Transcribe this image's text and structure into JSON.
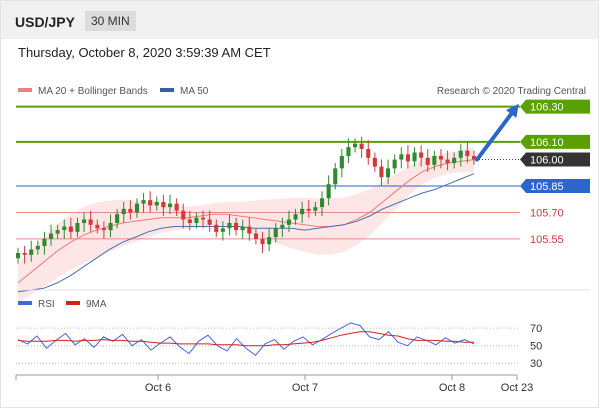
{
  "header": {
    "symbol": "USD/JPY",
    "timeframe": "30 MIN"
  },
  "datetime": "Thursday, October 8, 2020 3:59:39 AM CET",
  "colors": {
    "up": "#2f8a2f",
    "down": "#d23a3a",
    "ma20": "#f27a7a",
    "ma50": "#4a6fb5",
    "bands": "#fbdede",
    "resistance": "#5aa000",
    "support_line": "#e88a8a",
    "support_label": "#d23a3a",
    "pivot": "#2a66cc",
    "arrow": "#2a66cc",
    "rsi": "#4466dd",
    "rsi_ma": "#d22020",
    "current": "#333333"
  },
  "legend_main": [
    {
      "name": "MA 20 + Bollinger Bands",
      "color": "#f08080"
    },
    {
      "name": "MA 50",
      "color": "#3a5f9f"
    }
  ],
  "credit": "Research © 2020 Trading Central",
  "legend_rsi": [
    {
      "name": "RSI",
      "color": "#4466dd"
    },
    {
      "name": "9MA",
      "color": "#d22020"
    }
  ],
  "chart_data": [
    {
      "type": "line",
      "subtype": "candlestick",
      "ylim": [
        105.26,
        106.44
      ],
      "x_ticks": [
        "Oct 6",
        "Oct 7",
        "Oct 8",
        "Oct 23"
      ],
      "levels": [
        {
          "value": 106.3,
          "label": "106.30",
          "kind": "resistance"
        },
        {
          "value": 106.1,
          "label": "106.10",
          "kind": "resistance"
        },
        {
          "value": 106.0,
          "label": "106.00",
          "kind": "current"
        },
        {
          "value": 105.85,
          "label": "105.85",
          "kind": "pivot"
        },
        {
          "value": 105.7,
          "label": "105.70",
          "kind": "support"
        },
        {
          "value": 105.55,
          "label": "105.55",
          "kind": "support"
        }
      ],
      "close_series": [
        105.47,
        105.46,
        105.49,
        105.51,
        105.55,
        105.58,
        105.6,
        105.62,
        105.59,
        105.64,
        105.66,
        105.63,
        105.61,
        105.6,
        105.64,
        105.69,
        105.72,
        105.7,
        105.75,
        105.77,
        105.74,
        105.76,
        105.73,
        105.75,
        105.71,
        105.66,
        105.64,
        105.67,
        105.66,
        105.63,
        105.59,
        105.61,
        105.64,
        105.6,
        105.62,
        105.58,
        105.55,
        105.52,
        105.56,
        105.61,
        105.63,
        105.66,
        105.69,
        105.72,
        105.71,
        105.73,
        105.78,
        105.86,
        105.95,
        106.02,
        106.07,
        106.09,
        106.06,
        106.01,
        105.96,
        105.9,
        105.95,
        106.0,
        106.03,
        105.99,
        106.04,
        106.01,
        105.97,
        106.02,
        106.0,
        105.98,
        106.01,
        106.05,
        106.02,
        106.0
      ],
      "ma20_series": [
        105.3,
        105.36,
        105.42,
        105.48,
        105.53,
        105.57,
        105.6,
        105.62,
        105.64,
        105.65,
        105.66,
        105.67,
        105.67,
        105.67,
        105.68,
        105.69,
        105.69,
        105.68,
        105.67,
        105.66,
        105.65,
        105.64,
        105.63,
        105.62,
        105.62,
        105.63,
        105.66,
        105.7,
        105.76,
        105.82,
        105.88,
        105.93,
        105.96,
        105.98,
        105.99,
        106.0
      ],
      "ma50_series": [
        105.25,
        105.26,
        105.27,
        105.3,
        105.34,
        105.39,
        105.44,
        105.49,
        105.53,
        105.56,
        105.59,
        105.61,
        105.62,
        105.62,
        105.62,
        105.62,
        105.62,
        105.62,
        105.61,
        105.61,
        105.61,
        105.61,
        105.6,
        105.61,
        105.62,
        105.63,
        105.65,
        105.68,
        105.72,
        105.75,
        105.78,
        105.81,
        105.83,
        105.86,
        105.89,
        105.92
      ]
    },
    {
      "type": "line",
      "name": "RSI",
      "ylim": [
        20,
        85
      ],
      "y_ticks": [
        70,
        50,
        30
      ],
      "series": [
        {
          "name": "RSI",
          "values": [
            57,
            52,
            61,
            47,
            56,
            64,
            51,
            58,
            48,
            60,
            55,
            63,
            50,
            57,
            45,
            53,
            60,
            49,
            41,
            55,
            62,
            50,
            44,
            58,
            47,
            39,
            52,
            57,
            46,
            55,
            60,
            51,
            57,
            64,
            70,
            76,
            73,
            60,
            57,
            66,
            54,
            50,
            60,
            56,
            51,
            59,
            53,
            57,
            52
          ]
        },
        {
          "name": "9MA",
          "values": [
            56,
            55,
            55,
            55,
            56,
            56,
            55,
            56,
            56,
            57,
            56,
            56,
            55,
            55,
            54,
            53,
            53,
            52,
            52,
            52,
            52,
            51,
            51,
            51,
            50,
            50,
            50,
            51,
            51,
            52,
            53,
            54,
            56,
            59,
            62,
            64,
            66,
            66,
            64,
            62,
            61,
            58,
            56,
            56,
            56,
            55,
            55,
            54,
            54
          ]
        }
      ]
    }
  ]
}
